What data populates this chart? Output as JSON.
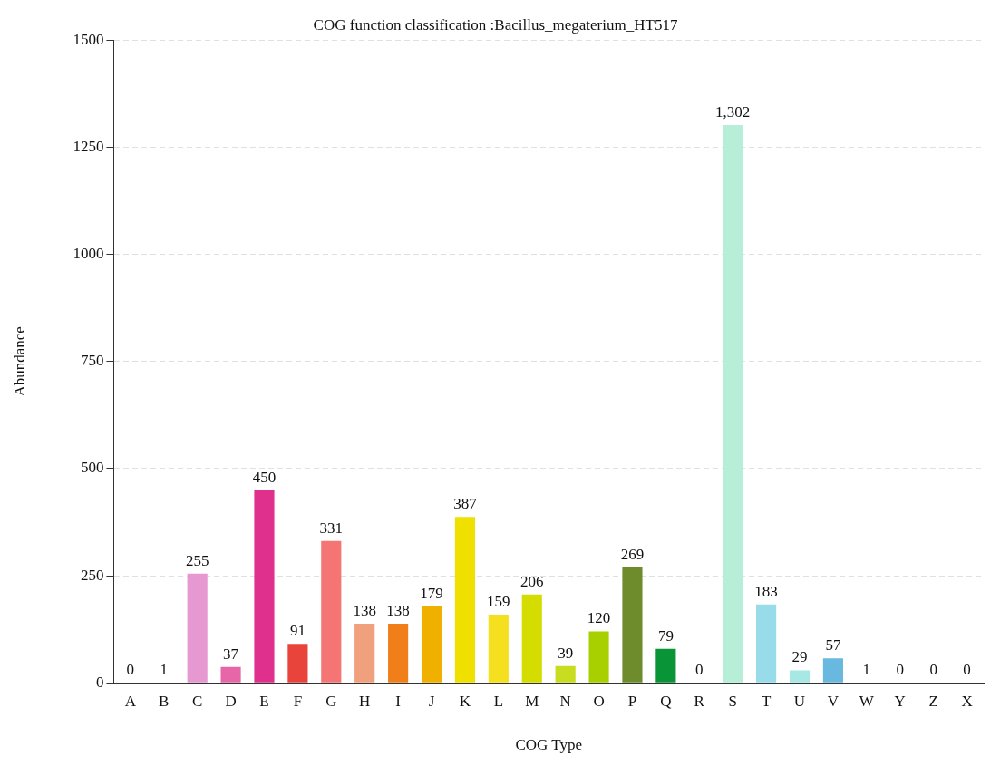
{
  "chart_data": {
    "type": "bar",
    "title": "COG function classification :Bacillus_megaterium_HT517",
    "xlabel": "COG Type",
    "ylabel": "Abundance",
    "categories": [
      "A",
      "B",
      "C",
      "D",
      "E",
      "F",
      "G",
      "H",
      "I",
      "J",
      "K",
      "L",
      "M",
      "N",
      "O",
      "P",
      "Q",
      "R",
      "S",
      "T",
      "U",
      "V",
      "W",
      "Y",
      "Z",
      "X"
    ],
    "values": [
      0,
      1,
      255,
      37,
      450,
      91,
      331,
      138,
      138,
      179,
      387,
      159,
      206,
      39,
      120,
      269,
      79,
      0,
      1302,
      183,
      29,
      57,
      1,
      0,
      0,
      0
    ],
    "colors": [
      "#8dd3c7",
      "#a6cee3",
      "#e599d0",
      "#e766a8",
      "#e0308e",
      "#e8443c",
      "#f57575",
      "#f0a07c",
      "#f07f1a",
      "#f0b000",
      "#f0e000",
      "#f5e020",
      "#d4dc00",
      "#c8dc20",
      "#a8d000",
      "#6e8c2c",
      "#0a9438",
      "#2ca25f",
      "#b6eed8",
      "#98dcea",
      "#a8e8e4",
      "#68b8e0",
      "#4393c3",
      "#6a51a3",
      "#9e9ac8",
      "#bcbddc"
    ],
    "value_labels": [
      "0",
      "1",
      "255",
      "37",
      "450",
      "91",
      "331",
      "138",
      "138",
      "179",
      "387",
      "159",
      "206",
      "39",
      "120",
      "269",
      "79",
      "0",
      "1,302",
      "183",
      "29",
      "57",
      "1",
      "0",
      "0",
      "0"
    ],
    "ylim": [
      0,
      1500
    ],
    "yticks": [
      0,
      250,
      500,
      750,
      1000,
      1250,
      1500
    ],
    "grid": "y",
    "legend": false
  }
}
